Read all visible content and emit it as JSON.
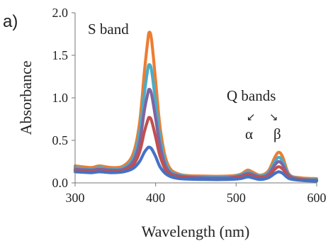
{
  "panel_label": "a)",
  "chart_data": {
    "type": "line",
    "title": "",
    "xlabel": "Wavelength  (nm)",
    "ylabel": "Absorbance",
    "xlim": [
      300,
      600
    ],
    "ylim": [
      0.0,
      2.0
    ],
    "xticks": [
      "300",
      "400",
      "500",
      "600"
    ],
    "yticks": [
      "0.0",
      "0.5",
      "1.0",
      "1.5",
      "2.0"
    ],
    "grid": false,
    "legend": "none",
    "annotations": {
      "s_band": "S band",
      "q_bands": "Q bands",
      "alpha": "α",
      "beta": "β",
      "arrow_left": "↙",
      "arrow_right": "↘"
    },
    "series": [
      {
        "color": "#ed7d31",
        "values": [
          [
            300,
            0.2
          ],
          [
            320,
            0.18
          ],
          [
            330,
            0.2
          ],
          [
            345,
            0.18
          ],
          [
            360,
            0.2
          ],
          [
            372,
            0.34
          ],
          [
            380,
            0.7
          ],
          [
            386,
            1.3
          ],
          [
            390,
            1.65
          ],
          [
            392,
            1.77
          ],
          [
            395,
            1.68
          ],
          [
            400,
            1.2
          ],
          [
            406,
            0.62
          ],
          [
            415,
            0.22
          ],
          [
            430,
            0.1
          ],
          [
            460,
            0.08
          ],
          [
            490,
            0.08
          ],
          [
            505,
            0.1
          ],
          [
            514,
            0.15
          ],
          [
            520,
            0.13
          ],
          [
            530,
            0.09
          ],
          [
            540,
            0.14
          ],
          [
            548,
            0.3
          ],
          [
            553,
            0.36
          ],
          [
            558,
            0.3
          ],
          [
            566,
            0.1
          ],
          [
            580,
            0.06
          ],
          [
            600,
            0.05
          ]
        ]
      },
      {
        "color": "#4bacc6",
        "values": [
          [
            300,
            0.18
          ],
          [
            320,
            0.16
          ],
          [
            330,
            0.18
          ],
          [
            345,
            0.16
          ],
          [
            360,
            0.18
          ],
          [
            372,
            0.29
          ],
          [
            380,
            0.58
          ],
          [
            386,
            1.05
          ],
          [
            390,
            1.32
          ],
          [
            392,
            1.39
          ],
          [
            395,
            1.32
          ],
          [
            400,
            0.95
          ],
          [
            406,
            0.5
          ],
          [
            415,
            0.18
          ],
          [
            430,
            0.09
          ],
          [
            460,
            0.07
          ],
          [
            490,
            0.07
          ],
          [
            505,
            0.09
          ],
          [
            514,
            0.13
          ],
          [
            520,
            0.11
          ],
          [
            530,
            0.08
          ],
          [
            540,
            0.12
          ],
          [
            548,
            0.25
          ],
          [
            553,
            0.3
          ],
          [
            558,
            0.25
          ],
          [
            566,
            0.09
          ],
          [
            580,
            0.05
          ],
          [
            600,
            0.04
          ]
        ]
      },
      {
        "color": "#8064a2",
        "values": [
          [
            300,
            0.16
          ],
          [
            320,
            0.15
          ],
          [
            330,
            0.16
          ],
          [
            345,
            0.15
          ],
          [
            360,
            0.16
          ],
          [
            372,
            0.25
          ],
          [
            380,
            0.47
          ],
          [
            386,
            0.85
          ],
          [
            390,
            1.04
          ],
          [
            392,
            1.1
          ],
          [
            395,
            1.04
          ],
          [
            400,
            0.76
          ],
          [
            406,
            0.41
          ],
          [
            415,
            0.15
          ],
          [
            430,
            0.08
          ],
          [
            460,
            0.06
          ],
          [
            490,
            0.06
          ],
          [
            505,
            0.08
          ],
          [
            514,
            0.11
          ],
          [
            520,
            0.1
          ],
          [
            530,
            0.07
          ],
          [
            540,
            0.1
          ],
          [
            548,
            0.21
          ],
          [
            553,
            0.25
          ],
          [
            558,
            0.21
          ],
          [
            566,
            0.08
          ],
          [
            580,
            0.04
          ],
          [
            600,
            0.03
          ]
        ]
      },
      {
        "color": "#c0504d",
        "values": [
          [
            300,
            0.15
          ],
          [
            320,
            0.13
          ],
          [
            330,
            0.15
          ],
          [
            345,
            0.13
          ],
          [
            360,
            0.15
          ],
          [
            372,
            0.21
          ],
          [
            380,
            0.36
          ],
          [
            386,
            0.6
          ],
          [
            390,
            0.73
          ],
          [
            392,
            0.77
          ],
          [
            395,
            0.73
          ],
          [
            400,
            0.54
          ],
          [
            406,
            0.3
          ],
          [
            415,
            0.12
          ],
          [
            430,
            0.07
          ],
          [
            460,
            0.05
          ],
          [
            490,
            0.05
          ],
          [
            505,
            0.07
          ],
          [
            514,
            0.09
          ],
          [
            520,
            0.08
          ],
          [
            530,
            0.06
          ],
          [
            540,
            0.08
          ],
          [
            548,
            0.16
          ],
          [
            553,
            0.19
          ],
          [
            558,
            0.16
          ],
          [
            566,
            0.07
          ],
          [
            580,
            0.04
          ],
          [
            600,
            0.03
          ]
        ]
      },
      {
        "color": "#4472c4",
        "values": [
          [
            300,
            0.13
          ],
          [
            320,
            0.12
          ],
          [
            330,
            0.13
          ],
          [
            345,
            0.12
          ],
          [
            360,
            0.13
          ],
          [
            372,
            0.17
          ],
          [
            380,
            0.25
          ],
          [
            386,
            0.36
          ],
          [
            390,
            0.41
          ],
          [
            392,
            0.42
          ],
          [
            395,
            0.4
          ],
          [
            400,
            0.31
          ],
          [
            406,
            0.18
          ],
          [
            415,
            0.09
          ],
          [
            430,
            0.05
          ],
          [
            460,
            0.04
          ],
          [
            490,
            0.04
          ],
          [
            505,
            0.05
          ],
          [
            514,
            0.07
          ],
          [
            520,
            0.06
          ],
          [
            530,
            0.04
          ],
          [
            540,
            0.06
          ],
          [
            548,
            0.11
          ],
          [
            553,
            0.13
          ],
          [
            558,
            0.11
          ],
          [
            566,
            0.05
          ],
          [
            580,
            0.03
          ],
          [
            600,
            0.02
          ]
        ]
      }
    ]
  }
}
